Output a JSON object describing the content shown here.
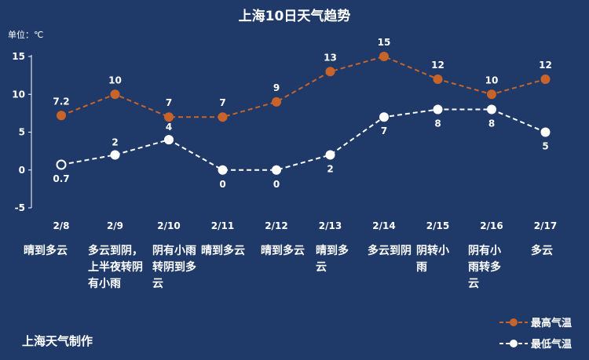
{
  "chart_data": {
    "type": "line",
    "title": "上海10日天气趋势",
    "unit_label": "单位：℃",
    "categories": [
      "2/8",
      "2/9",
      "2/10",
      "2/11",
      "2/12",
      "2/13",
      "2/14",
      "2/15",
      "2/16",
      "2/17"
    ],
    "conditions": [
      "晴到多云",
      "多云到阴，上半夜转阴有小雨",
      "阴有小雨转阴到多云",
      "晴到多云",
      "晴到多云",
      "晴到多云",
      "多云到阴",
      "阴转小雨",
      "阴有小雨转多云",
      "多云"
    ],
    "series": [
      {
        "name": "最高气温",
        "values": [
          7.2,
          10,
          7,
          7,
          9,
          13,
          15,
          12,
          10,
          12
        ],
        "labels": [
          "7.2",
          "10",
          "7",
          "7",
          "9",
          "13",
          "15",
          "12",
          "10",
          "12"
        ],
        "color": "#c8642a"
      },
      {
        "name": "最低气温",
        "values": [
          0.7,
          2,
          4,
          0,
          0,
          2,
          7,
          8,
          8,
          5
        ],
        "labels": [
          "0.7",
          "2",
          "4",
          "0",
          "0",
          "2",
          "7",
          "8",
          "8",
          "5"
        ],
        "color": "#ffffff"
      }
    ],
    "ylim": [
      -5,
      15
    ],
    "yticks": [
      -5,
      0,
      5,
      10,
      15
    ],
    "grid": false,
    "legend": "bottom-right"
  },
  "footer": {
    "credit": "上海天气制作"
  }
}
